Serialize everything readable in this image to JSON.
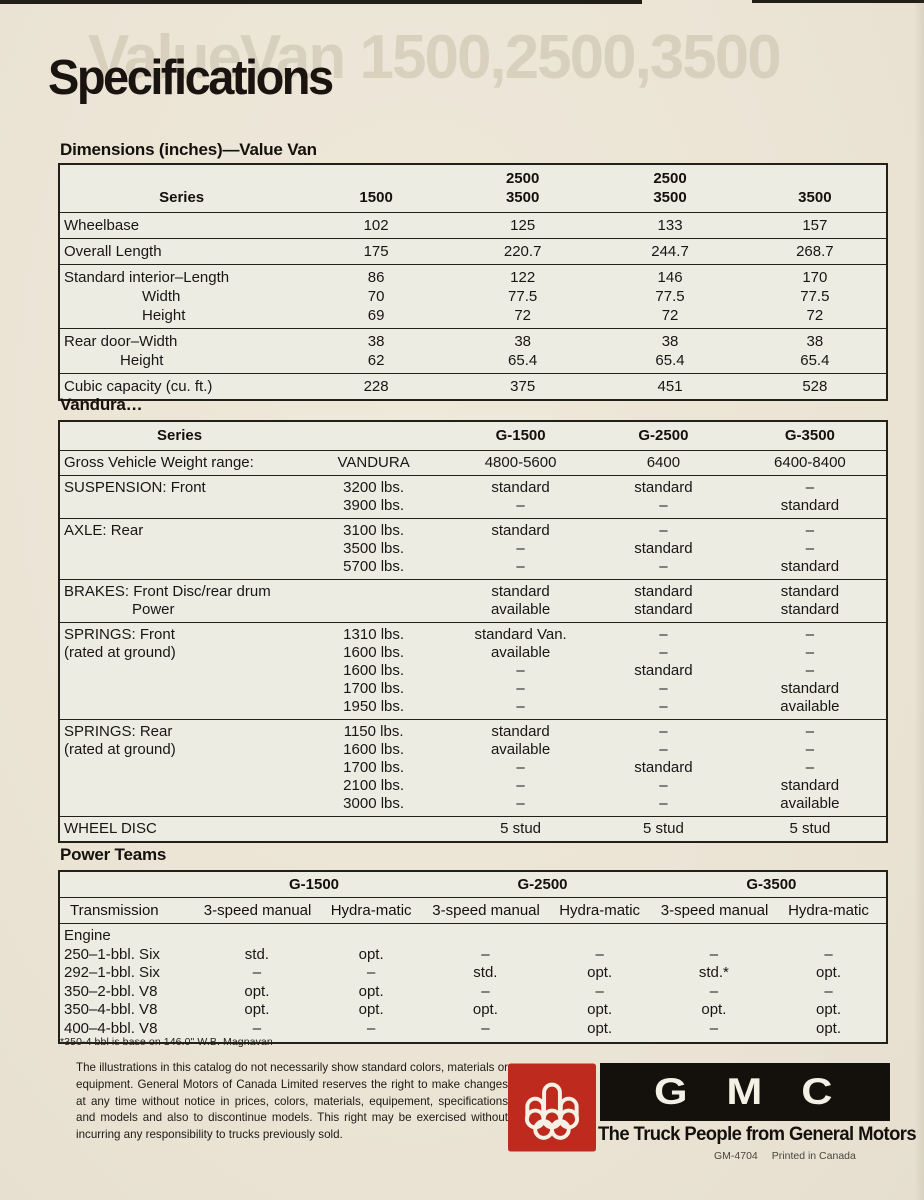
{
  "page": {
    "title": "Specifications",
    "ghost_text": "ValueVan 1500,2500,3500"
  },
  "colors": {
    "paper": "#ece6d7",
    "ink": "#19140f",
    "gmc_red": "#bf2a1e",
    "gmc_black": "#14110d"
  },
  "dimensions": {
    "heading": "Dimensions (inches)—Value Van",
    "header": [
      "Series",
      "1500",
      "2500\n3500",
      "2500\n3500",
      "3500"
    ],
    "groups": [
      {
        "lines": [
          {
            "label": "Wheelbase",
            "values": [
              "102",
              "125",
              "133",
              "157"
            ]
          }
        ]
      },
      {
        "lines": [
          {
            "label": "Overall Length",
            "values": [
              "175",
              "220.7",
              "244.7",
              "268.7"
            ]
          }
        ]
      },
      {
        "lines": [
          {
            "label": "Standard interior–Length",
            "values": [
              "86",
              "122",
              "146",
              "170"
            ]
          },
          {
            "label": "Width",
            "ind": 1,
            "values": [
              "70",
              "77.5",
              "77.5",
              "77.5"
            ]
          },
          {
            "label": "Height",
            "ind": 1,
            "values": [
              "69",
              "72",
              "72",
              "72"
            ]
          }
        ]
      },
      {
        "lines": [
          {
            "label": "Rear door–Width",
            "values": [
              "38",
              "38",
              "38",
              "38"
            ]
          },
          {
            "label": "Height",
            "ind": 2,
            "values": [
              "62",
              "65.4",
              "65.4",
              "65.4"
            ]
          }
        ]
      },
      {
        "lines": [
          {
            "label": "Cubic capacity (cu. ft.)",
            "values": [
              "228",
              "375",
              "451",
              "528"
            ]
          }
        ]
      }
    ]
  },
  "vandura": {
    "heading": "Vandura…",
    "header": [
      "Series",
      "",
      "G-1500",
      "G-2500",
      "G-3500"
    ],
    "groups": [
      {
        "lines": [
          {
            "label": "Gross Vehicle Weight range:",
            "spec": "VANDURA",
            "values": [
              "4800-5600",
              "6400",
              "6400-8400"
            ]
          }
        ]
      },
      {
        "lines": [
          {
            "label": "SUSPENSION: Front",
            "spec": "3200 lbs.",
            "values": [
              "standard",
              "standard",
              "–"
            ]
          },
          {
            "label": "",
            "spec": "3900 lbs.",
            "values": [
              "–",
              "–",
              "standard"
            ]
          }
        ]
      },
      {
        "lines": [
          {
            "label": "AXLE: Rear",
            "spec": "3100 lbs.",
            "values": [
              "standard",
              "–",
              "–"
            ]
          },
          {
            "label": "",
            "spec": "3500 lbs.",
            "values": [
              "–",
              "standard",
              "–"
            ]
          },
          {
            "label": "",
            "spec": "5700 lbs.",
            "values": [
              "–",
              "–",
              "standard"
            ]
          }
        ]
      },
      {
        "lines": [
          {
            "label": "BRAKES: Front Disc/rear drum",
            "spec": "",
            "values": [
              "standard",
              "standard",
              "standard"
            ]
          },
          {
            "label": "Power",
            "ind": 3,
            "spec": "",
            "values": [
              "available",
              "standard",
              "standard"
            ]
          }
        ]
      },
      {
        "lines": [
          {
            "label": "SPRINGS: Front",
            "spec": "1310 lbs.",
            "values": [
              "standard Van.",
              "–",
              "–"
            ]
          },
          {
            "label": "(rated at ground)",
            "spec": "1600 lbs.",
            "values": [
              "available",
              "–",
              "–"
            ]
          },
          {
            "label": "",
            "spec": "1600 lbs.",
            "values": [
              "–",
              "standard",
              "–"
            ]
          },
          {
            "label": "",
            "spec": "1700 lbs.",
            "values": [
              "–",
              "–",
              "standard"
            ]
          },
          {
            "label": "",
            "spec": "1950 lbs.",
            "values": [
              "–",
              "–",
              "available"
            ]
          }
        ]
      },
      {
        "lines": [
          {
            "label": "SPRINGS: Rear",
            "spec": "1150 lbs.",
            "values": [
              "standard",
              "–",
              "–"
            ]
          },
          {
            "label": "(rated at ground)",
            "spec": "1600 lbs.",
            "values": [
              "available",
              "–",
              "–"
            ]
          },
          {
            "label": "",
            "spec": "1700 lbs.",
            "values": [
              "–",
              "standard",
              "–"
            ]
          },
          {
            "label": "",
            "spec": "2100 lbs.",
            "values": [
              "–",
              "–",
              "standard"
            ]
          },
          {
            "label": "",
            "spec": "3000 lbs.",
            "values": [
              "–",
              "–",
              "available"
            ]
          }
        ]
      },
      {
        "lines": [
          {
            "label": "WHEEL  DISC",
            "spec": "",
            "values": [
              "5 stud",
              "5 stud",
              "5 stud"
            ]
          }
        ]
      }
    ]
  },
  "power_teams": {
    "heading": "Power Teams",
    "header_groups": [
      "G-1500",
      "G-2500",
      "G-3500"
    ],
    "header_cols": [
      "Transmission",
      "3-speed manual",
      "Hydra-matic",
      "3-speed manual",
      "Hydra-matic",
      "3-speed manual",
      "Hydra-matic"
    ],
    "engine_label": "Engine",
    "rows": [
      {
        "label": "250–1-bbl. Six",
        "values": [
          "std.",
          "opt.",
          "–",
          "–",
          "–",
          "–"
        ]
      },
      {
        "label": "292–1-bbl. Six",
        "values": [
          "–",
          "–",
          "std.",
          "opt.",
          "std.*",
          "opt."
        ]
      },
      {
        "label": "350–2-bbl. V8",
        "values": [
          "opt.",
          "opt.",
          "–",
          "–",
          "–",
          "–"
        ]
      },
      {
        "label": "350–4-bbl. V8",
        "values": [
          "opt.",
          "opt.",
          "opt.",
          "opt.",
          "opt.",
          "opt."
        ]
      },
      {
        "label": "400–4-bbl. V8",
        "values": [
          "–",
          "–",
          "–",
          "opt.",
          "–",
          "opt."
        ]
      }
    ],
    "footnote": "*350-4 bbl is base on 146.0\" W.B. Magnavan"
  },
  "footer": {
    "disclaimer": "The illustrations in this catalog do not necessarily show standard colors, materials or equipment. General Motors of Canada Limited reserves the right to make changes at any time without notice in prices, colors, materials, equipement, specifications and models and also to discontinue models. This right may be exercised without incurring any responsibility to trucks previously sold.",
    "gmc_letters": "GMC",
    "tagline": "The Truck People from General Motors",
    "print_code": "GM-4704",
    "printed_in": "Printed in Canada"
  }
}
